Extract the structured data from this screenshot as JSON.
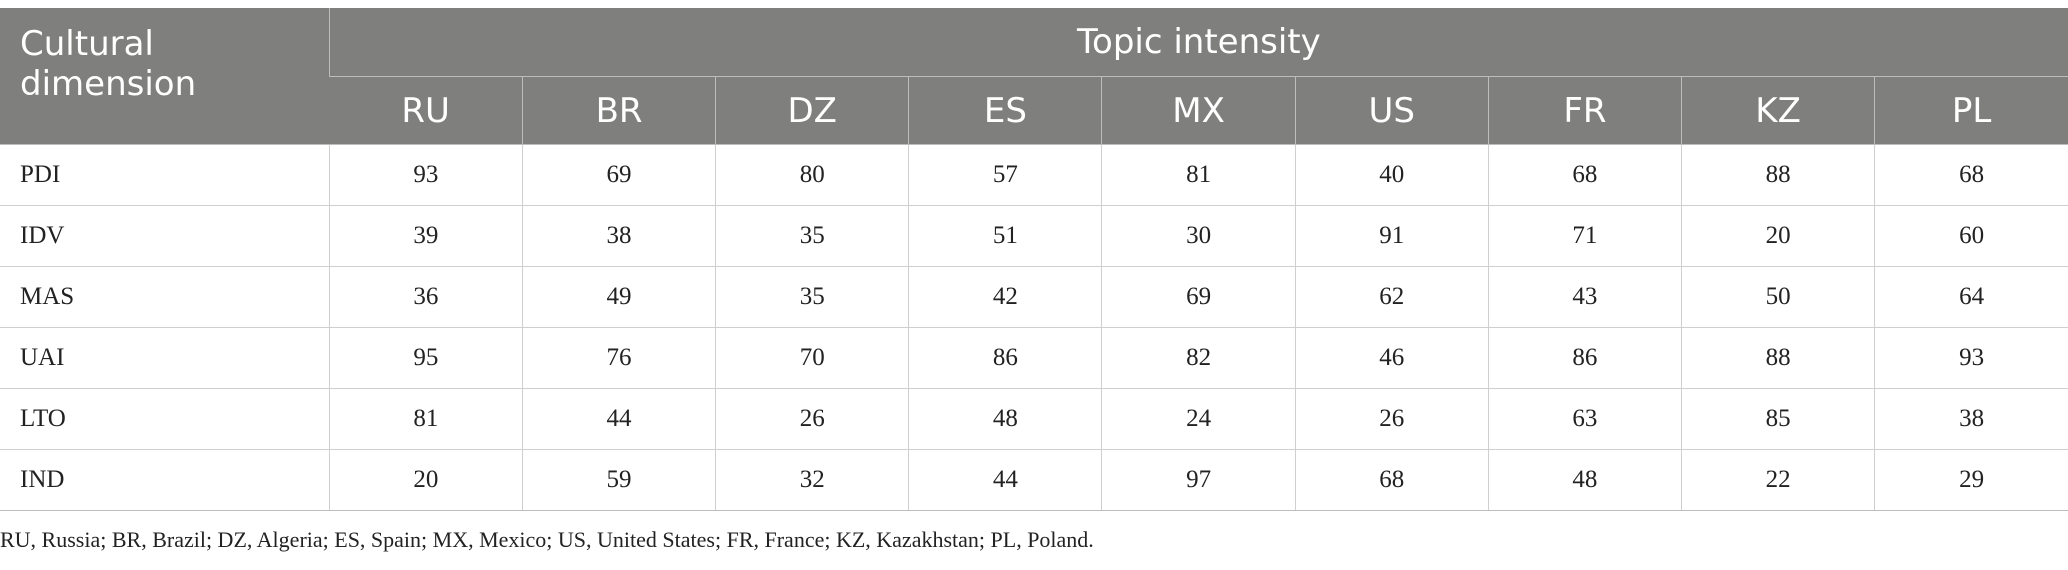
{
  "table": {
    "dimension_header": "Cultural dimension",
    "group_header": "Topic intensity",
    "countries": [
      "RU",
      "BR",
      "DZ",
      "ES",
      "MX",
      "US",
      "FR",
      "KZ",
      "PL"
    ],
    "rows": [
      {
        "label": "PDI",
        "values": [
          "93",
          "69",
          "80",
          "57",
          "81",
          "40",
          "68",
          "88",
          "68"
        ]
      },
      {
        "label": "IDV",
        "values": [
          "39",
          "38",
          "35",
          "51",
          "30",
          "91",
          "71",
          "20",
          "60"
        ]
      },
      {
        "label": "MAS",
        "values": [
          "36",
          "49",
          "35",
          "42",
          "69",
          "62",
          "43",
          "50",
          "64"
        ]
      },
      {
        "label": "UAI",
        "values": [
          "95",
          "76",
          "70",
          "86",
          "82",
          "46",
          "86",
          "88",
          "93"
        ]
      },
      {
        "label": "LTO",
        "values": [
          "81",
          "44",
          "26",
          "48",
          "24",
          "26",
          "63",
          "85",
          "38"
        ]
      },
      {
        "label": "IND",
        "values": [
          "20",
          "59",
          "32",
          "44",
          "97",
          "68",
          "48",
          "22",
          "29"
        ]
      }
    ]
  },
  "footnote": "RU, Russia; BR, Brazil; DZ, Algeria; ES, Spain; MX, Mexico; US, United States; FR, France; KZ, Kazakhstan; PL, Poland.",
  "colors": {
    "header_bg": "#7f7f7e",
    "header_text": "#ffffff",
    "body_text": "#222222",
    "grid": "#cfcfcf"
  }
}
